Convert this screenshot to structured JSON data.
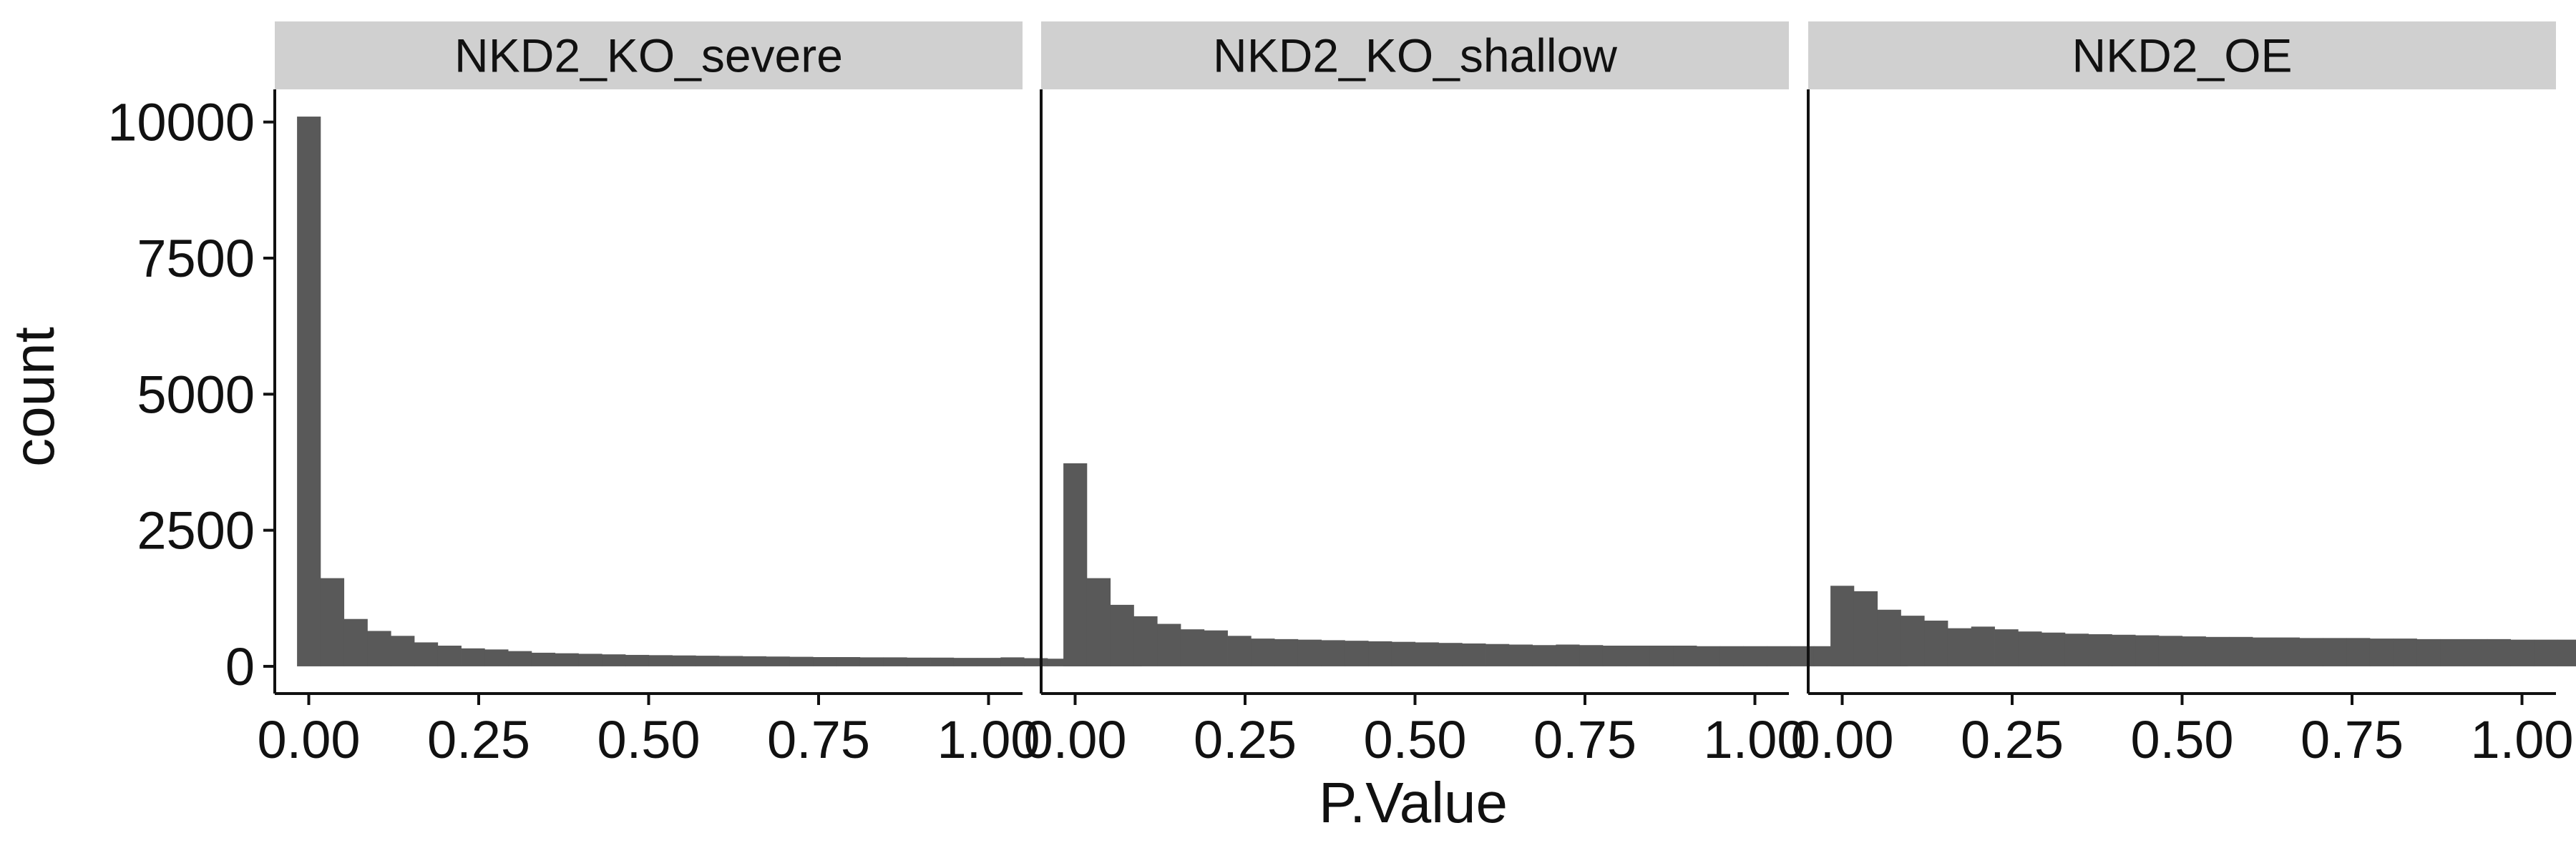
{
  "chart_data": {
    "type": "histogram-facets",
    "xlabel": "P.Value",
    "ylabel": "count",
    "xlim": [
      -0.05,
      1.05
    ],
    "ylim": [
      -500,
      10600
    ],
    "bin_width": 0.0345,
    "x_ticks": [
      "0.00",
      "0.25",
      "0.50",
      "0.75",
      "1.00"
    ],
    "x_tick_values": [
      0,
      0.25,
      0.5,
      0.75,
      1.0
    ],
    "y_ticks": [
      "0",
      "2500",
      "5000",
      "7500",
      "10000"
    ],
    "y_tick_values": [
      0,
      2500,
      5000,
      7500,
      10000
    ],
    "bar_color": "#595959",
    "strip_color": "#d0d0d0",
    "panels": [
      {
        "title": "NKD2_KO_severe",
        "values": [
          10100,
          1620,
          870,
          650,
          560,
          440,
          380,
          330,
          310,
          280,
          250,
          240,
          230,
          220,
          210,
          205,
          200,
          195,
          190,
          185,
          180,
          175,
          170,
          170,
          165,
          165,
          160,
          160,
          155,
          155,
          165,
          150,
          140,
          130,
          125,
          70
        ]
      },
      {
        "title": "NKD2_KO_shallow",
        "values": [
          3730,
          1620,
          1130,
          920,
          780,
          680,
          660,
          560,
          510,
          500,
          490,
          480,
          470,
          460,
          450,
          440,
          430,
          420,
          410,
          400,
          390,
          400,
          390,
          380,
          380,
          380,
          380,
          370,
          370,
          370,
          370,
          370,
          370,
          370,
          330,
          160
        ]
      },
      {
        "title": "NKD2_OE",
        "values": [
          1480,
          1380,
          1040,
          930,
          840,
          700,
          730,
          680,
          640,
          620,
          600,
          590,
          580,
          570,
          560,
          550,
          540,
          540,
          530,
          530,
          520,
          520,
          520,
          510,
          510,
          500,
          500,
          500,
          500,
          490,
          490,
          490,
          480,
          480,
          480,
          220
        ]
      }
    ]
  }
}
